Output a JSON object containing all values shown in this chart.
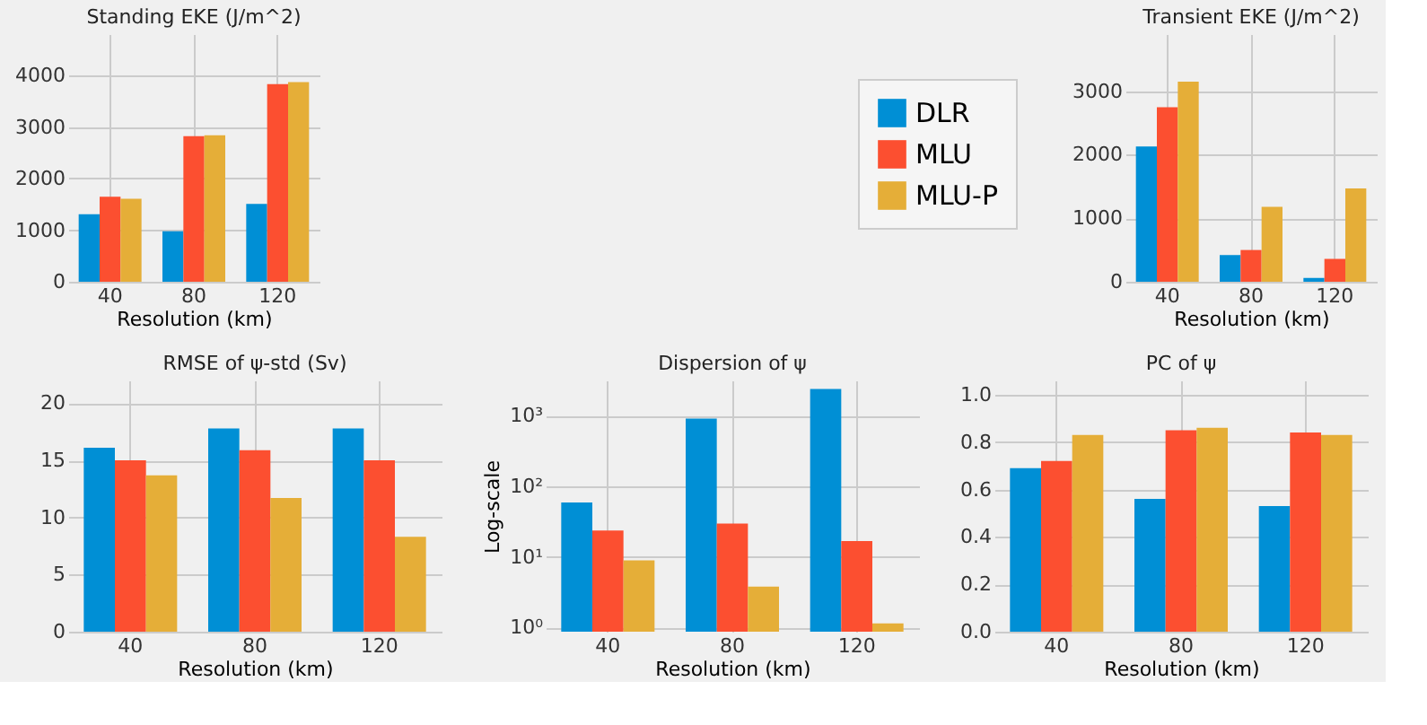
{
  "chart_data": [
    {
      "type": "bar",
      "title": "Standing EKE (J/m^2)",
      "xlabel": "Resolution (km)",
      "categories": [
        "40",
        "80",
        "120"
      ],
      "series": [
        {
          "name": "DLR",
          "color": "#008fd5",
          "values": [
            1310,
            980,
            1510
          ]
        },
        {
          "name": "MLU",
          "color": "#fc4f30",
          "values": [
            1650,
            2820,
            3830
          ]
        },
        {
          "name": "MLU-P",
          "color": "#e5ae38",
          "values": [
            1610,
            2840,
            3870
          ]
        }
      ],
      "ylim": [
        0,
        4800
      ],
      "yticks": [
        0,
        1000,
        2000,
        3000,
        4000
      ],
      "grid": true,
      "legend": "right"
    },
    {
      "type": "bar",
      "title": "Transient EKE (J/m^2)",
      "xlabel": "Resolution (km)",
      "categories": [
        "40",
        "80",
        "120"
      ],
      "series": [
        {
          "color": "#008fd5",
          "values": [
            2130,
            420,
            60
          ]
        },
        {
          "color": "#fc4f30",
          "values": [
            2750,
            500,
            360
          ]
        },
        {
          "color": "#e5ae38",
          "values": [
            3150,
            1180,
            1470
          ]
        }
      ],
      "ylim": [
        0,
        3900
      ],
      "yticks": [
        0,
        1000,
        2000,
        3000
      ],
      "grid": true
    },
    {
      "type": "bar",
      "title": "RMSE of ψ-std (Sv)",
      "xlabel": "Resolution (km)",
      "categories": [
        "40",
        "80",
        "120"
      ],
      "series": [
        {
          "color": "#008fd5",
          "values": [
            16.1,
            17.8,
            17.8
          ]
        },
        {
          "color": "#fc4f30",
          "values": [
            15.0,
            15.9,
            15.0
          ]
        },
        {
          "color": "#e5ae38",
          "values": [
            13.7,
            11.7,
            8.3
          ]
        }
      ],
      "ylim": [
        0,
        22
      ],
      "yticks": [
        0,
        5,
        10,
        15,
        20
      ],
      "grid": true
    },
    {
      "type": "bar",
      "title": "Dispersion of ψ",
      "xlabel": "Resolution (km)",
      "ylabel": "Log-scale",
      "categories": [
        "40",
        "80",
        "120"
      ],
      "series": [
        {
          "color": "#008fd5",
          "values": [
            59,
            910,
            2400
          ]
        },
        {
          "color": "#fc4f30",
          "values": [
            23.6,
            29.6,
            16.7
          ]
        },
        {
          "color": "#e5ae38",
          "values": [
            8.9,
            3.8,
            1.14
          ]
        }
      ],
      "log": true,
      "ylim": [
        0.87,
        3160
      ],
      "yticks": [
        {
          "value": 1,
          "label": "10⁰"
        },
        {
          "value": 10,
          "label": "10¹"
        },
        {
          "value": 100,
          "label": "10²"
        },
        {
          "value": 1000,
          "label": "10³"
        }
      ],
      "grid": true
    },
    {
      "type": "bar",
      "title": "PC of ψ",
      "xlabel": "Resolution (km)",
      "categories": [
        "40",
        "80",
        "120"
      ],
      "series": [
        {
          "color": "#008fd5",
          "values": [
            0.69,
            0.56,
            0.53
          ]
        },
        {
          "color": "#fc4f30",
          "values": [
            0.72,
            0.85,
            0.84
          ]
        },
        {
          "color": "#e5ae38",
          "values": [
            0.83,
            0.86,
            0.83
          ]
        }
      ],
      "ylim": [
        0,
        1.06
      ],
      "yticks": [
        {
          "value": 0,
          "label": "0.0"
        },
        0.2,
        0.4,
        0.6,
        0.8,
        {
          "value": 1,
          "label": "1.0"
        }
      ],
      "grid": true
    }
  ]
}
